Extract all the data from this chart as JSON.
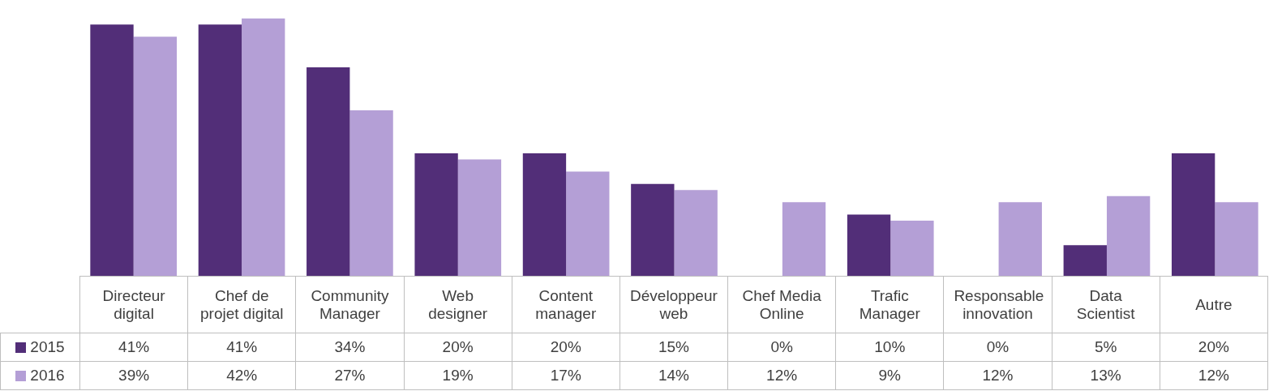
{
  "chart_data": {
    "type": "bar",
    "categories": [
      "Directeur digital",
      "Chef de projet digital",
      "Community Manager",
      "Web designer",
      "Content manager",
      "Développeur web",
      "Chef Media Online",
      "Trafic Manager",
      "Responsable innovation",
      "Data Scientist",
      "Autre"
    ],
    "series": [
      {
        "name": "2015",
        "color": "#522e78",
        "values": [
          41,
          41,
          34,
          20,
          20,
          15,
          0,
          10,
          0,
          5,
          20
        ],
        "value_labels": [
          "41%",
          "41%",
          "34%",
          "20%",
          "20%",
          "15%",
          "0%",
          "10%",
          "0%",
          "5%",
          "20%"
        ]
      },
      {
        "name": "2016",
        "color": "#b49fd6",
        "values": [
          39,
          42,
          27,
          19,
          17,
          14,
          12,
          9,
          12,
          13,
          12
        ],
        "value_labels": [
          "39%",
          "42%",
          "27%",
          "19%",
          "17%",
          "14%",
          "12%",
          "9%",
          "12%",
          "13%",
          "12%"
        ]
      }
    ],
    "legend": "bottom left"
  }
}
